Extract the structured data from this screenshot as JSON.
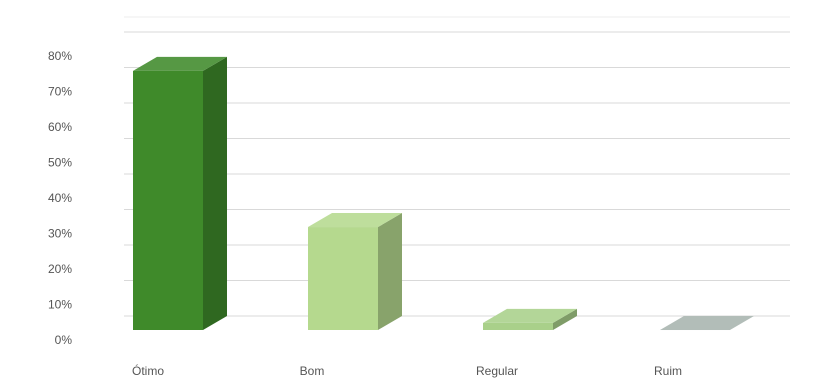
{
  "chart_data": {
    "type": "bar",
    "style": "3d-column",
    "categories": [
      "Ótimo",
      "Bom",
      "Regular",
      "Ruim"
    ],
    "values": [
      73,
      29,
      2,
      0
    ],
    "y_unit": "%",
    "ylim": [
      0,
      80
    ],
    "ytick_step": 10,
    "ytick_labels": [
      "0%",
      "10%",
      "20%",
      "30%",
      "40%",
      "50%",
      "60%",
      "70%",
      "80%"
    ],
    "grid": true,
    "legend": "none",
    "title": "",
    "xlabel": "",
    "ylabel": "",
    "colors": {
      "bars": [
        "#3f8a2a",
        "#b5d98e",
        "#a9d08a",
        "#a8b4ae"
      ],
      "grid": "#d9d9d9",
      "text": "#555555"
    }
  }
}
